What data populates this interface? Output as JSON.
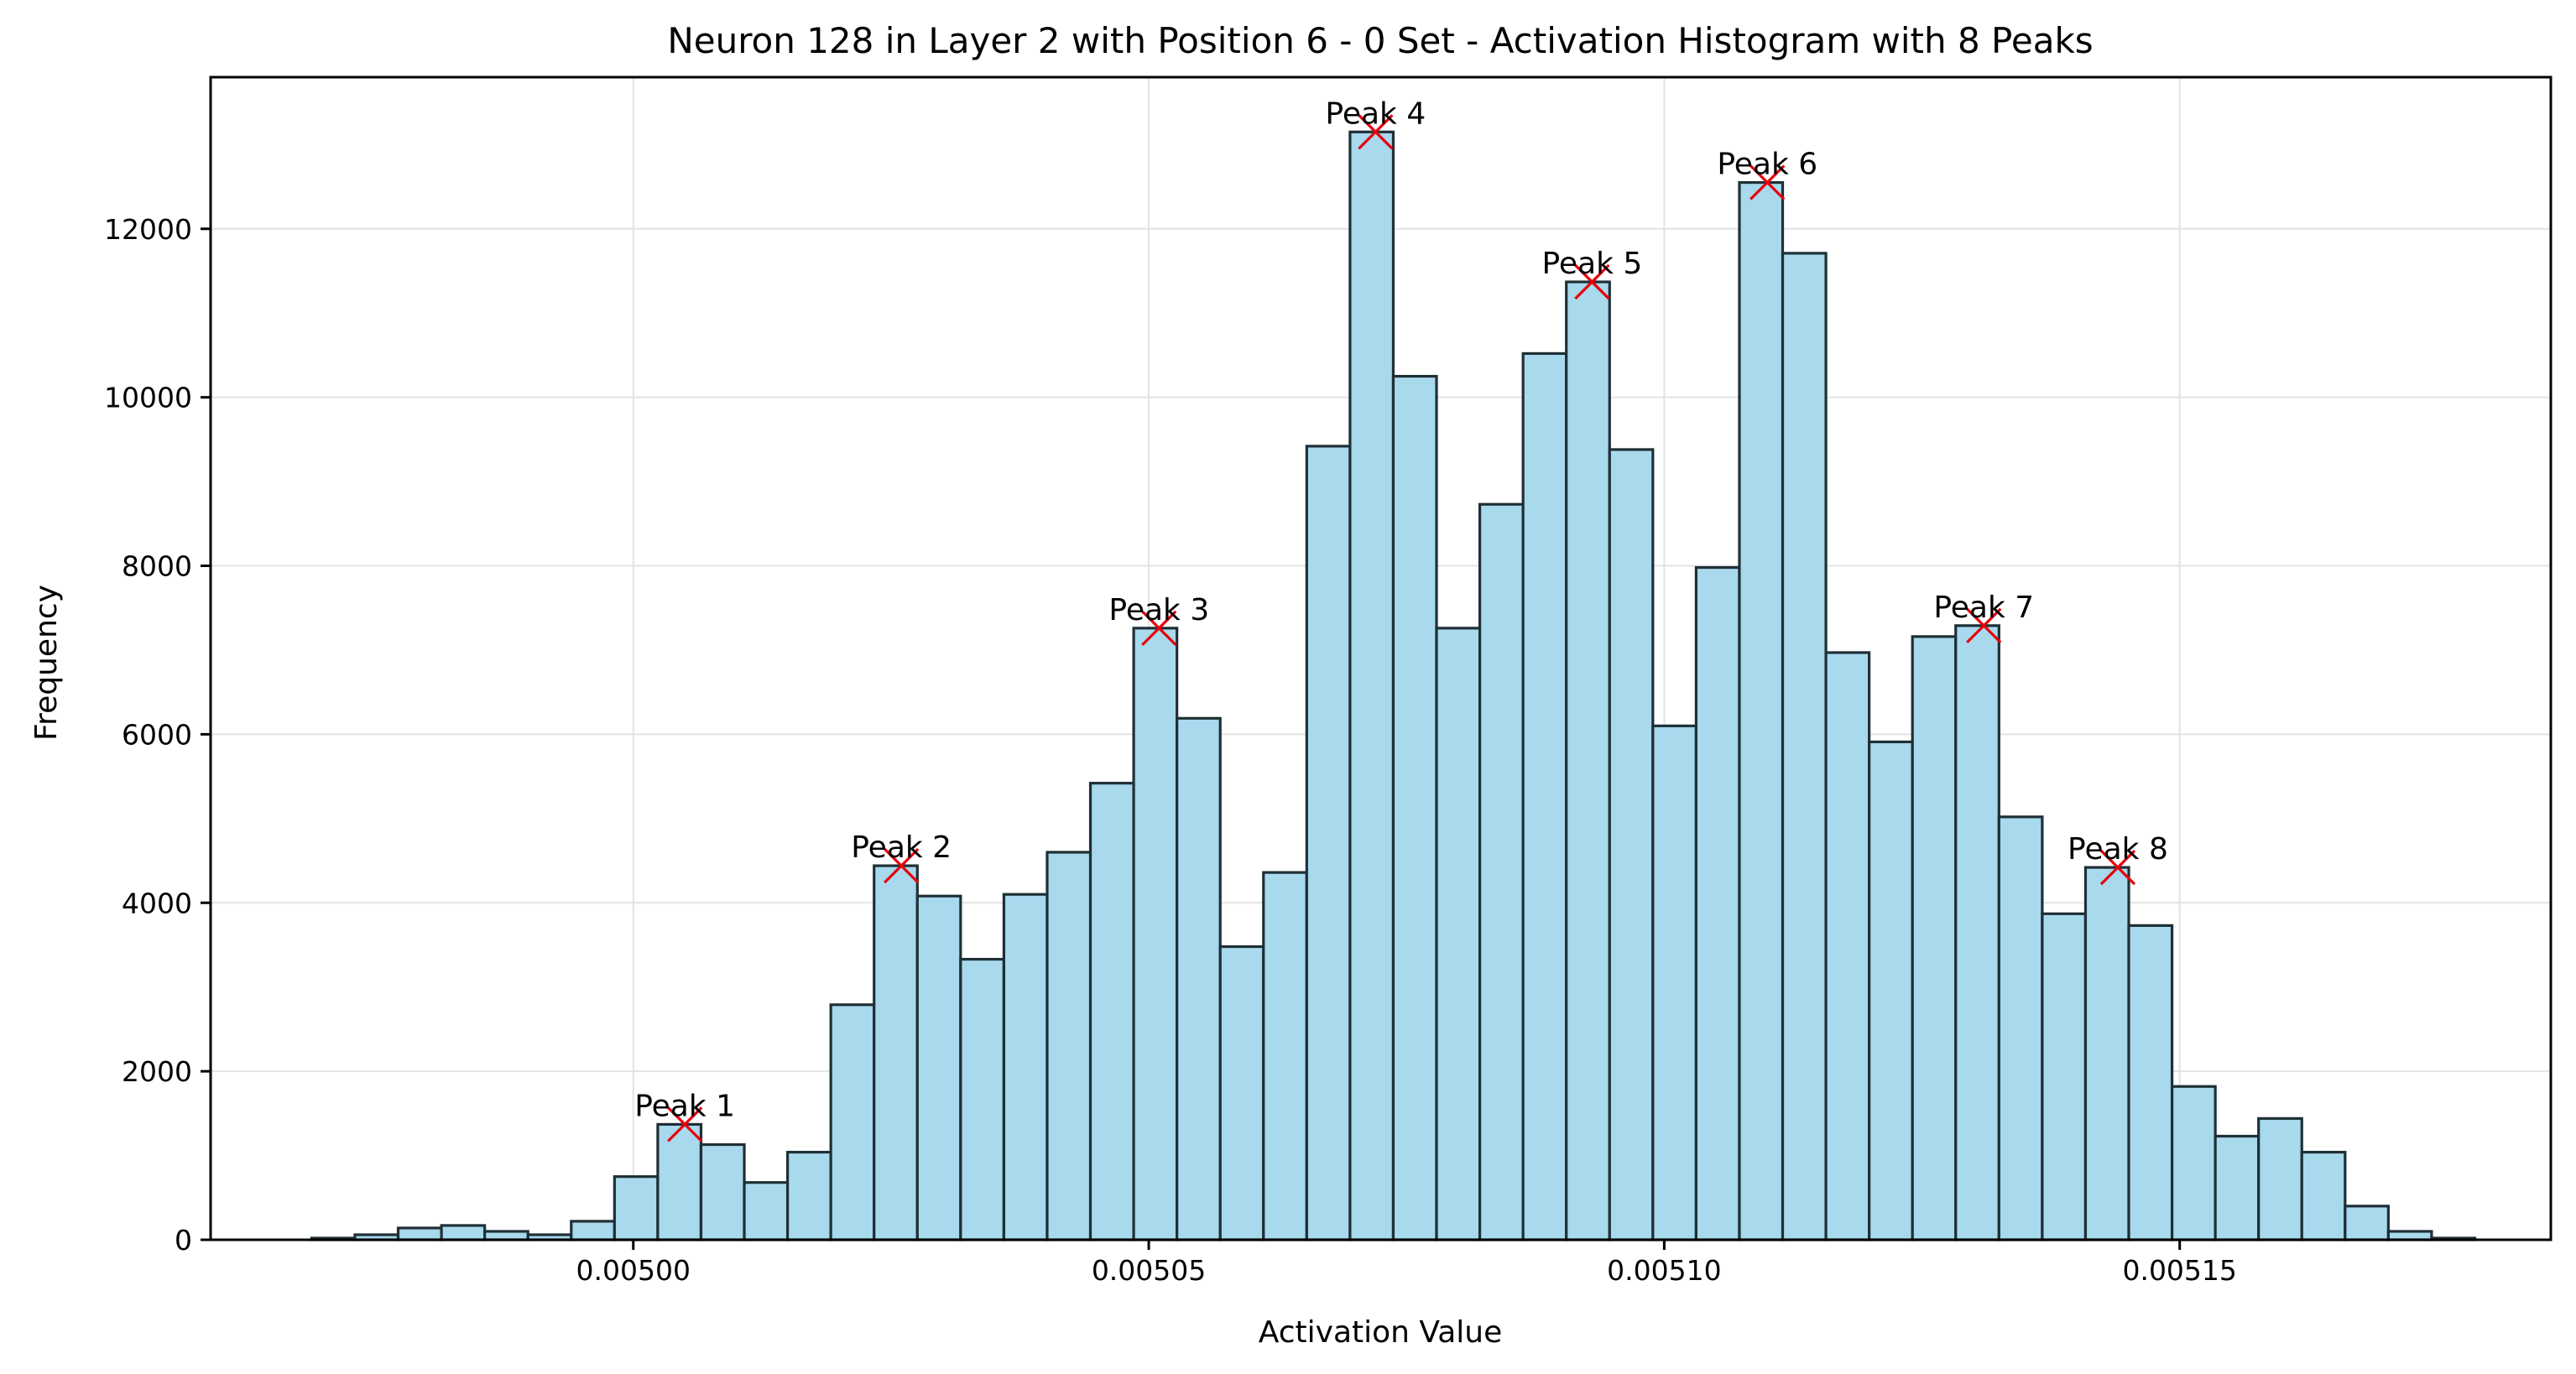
{
  "chart_data": {
    "type": "bar",
    "title": "Neuron 128 in Layer 2 with Position 6 - 0 Set - Activation Histogram with 8 Peaks",
    "xlabel": "Activation Value",
    "ylabel": "Frequency",
    "xlim": [
      0.004959,
      0.005186
    ],
    "ylim": [
      0,
      13800
    ],
    "grid": true,
    "colors": {
      "bar_fill": "#a8d9ed",
      "bar_edge": "#1f2f36",
      "peak_marker": "#e8000b",
      "grid": "#e3e3e3"
    },
    "x_ticks": [
      {
        "value": 0.005,
        "label": "0.00500"
      },
      {
        "value": 0.00505,
        "label": "0.00505"
      },
      {
        "value": 0.0051,
        "label": "0.00510"
      },
      {
        "value": 0.00515,
        "label": "0.00515"
      }
    ],
    "y_ticks": [
      {
        "value": 0,
        "label": "0"
      },
      {
        "value": 2000,
        "label": "2000"
      },
      {
        "value": 4000,
        "label": "4000"
      },
      {
        "value": 6000,
        "label": "6000"
      },
      {
        "value": 8000,
        "label": "8000"
      },
      {
        "value": 10000,
        "label": "10000"
      },
      {
        "value": 12000,
        "label": "12000"
      }
    ],
    "bins": {
      "start": 0.0049688,
      "width": 4.1967e-06,
      "counts": [
        20,
        60,
        140,
        170,
        100,
        60,
        220,
        750,
        1370,
        1130,
        680,
        1040,
        2790,
        4440,
        4080,
        3330,
        4100,
        4600,
        5420,
        7260,
        6190,
        3480,
        4360,
        9420,
        13150,
        10250,
        7260,
        8730,
        10520,
        11370,
        9380,
        6100,
        7980,
        12550,
        11710,
        6970,
        5910,
        7160,
        7290,
        5020,
        3870,
        4420,
        3730,
        1820,
        1230,
        1440,
        1040,
        400,
        100,
        20
      ]
    },
    "peaks": [
      {
        "label": "Peak 1",
        "x": 0.005005,
        "y": 1370
      },
      {
        "label": "Peak 2",
        "x": 0.005026,
        "y": 4440
      },
      {
        "label": "Peak 3",
        "x": 0.005051,
        "y": 7260
      },
      {
        "label": "Peak 4",
        "x": 0.005072,
        "y": 13150
      },
      {
        "label": "Peak 5",
        "x": 0.005093,
        "y": 11370
      },
      {
        "label": "Peak 6",
        "x": 0.00511,
        "y": 12550
      },
      {
        "label": "Peak 7",
        "x": 0.005131,
        "y": 7290
      },
      {
        "label": "Peak 8",
        "x": 0.005144,
        "y": 4420
      }
    ]
  }
}
